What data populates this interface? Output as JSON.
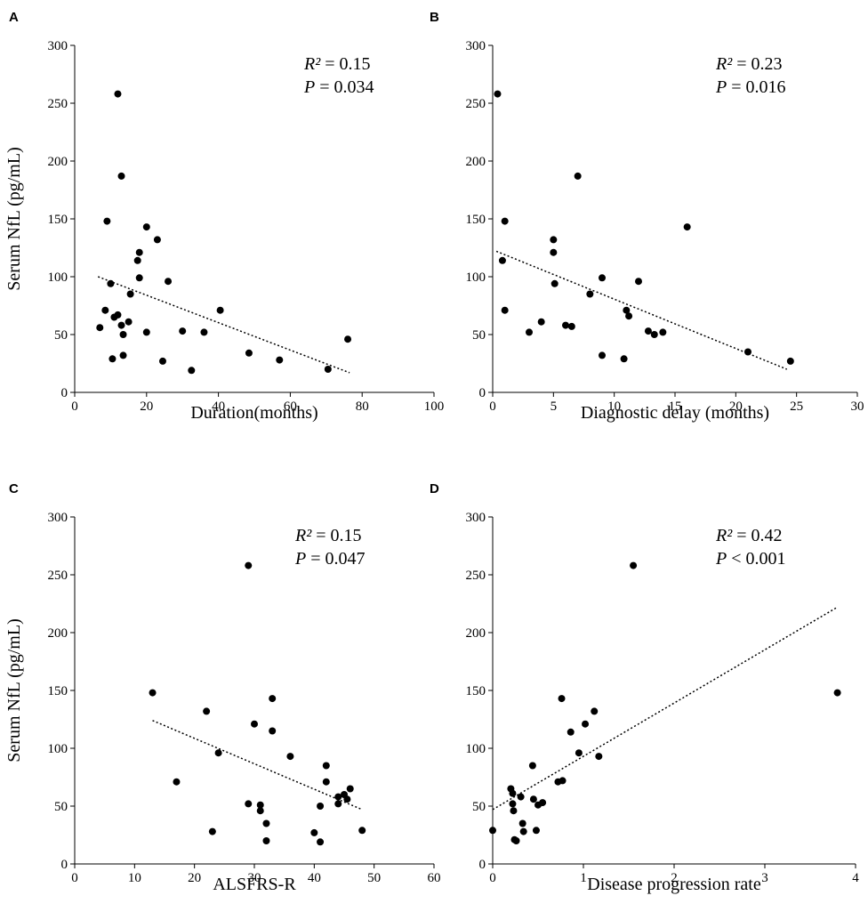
{
  "chart_data": [
    {
      "panel": "A",
      "type": "scatter",
      "xlabel": "Duration(months)",
      "ylabel": "Serum NfL (pg/mL)",
      "xlim": [
        0,
        100
      ],
      "ylim": [
        0,
        300
      ],
      "xticks": [
        0,
        20,
        40,
        60,
        80,
        100
      ],
      "yticks": [
        0,
        50,
        100,
        150,
        200,
        250,
        300
      ],
      "stat_r2": "R² = 0.15",
      "stat_p": "P  = 0.034",
      "trendline": [
        [
          6.5,
          100
        ],
        [
          76.5,
          17
        ]
      ],
      "points": [
        [
          12,
          258
        ],
        [
          13,
          187
        ],
        [
          9,
          148
        ],
        [
          20,
          143
        ],
        [
          23,
          132
        ],
        [
          18,
          121
        ],
        [
          17.5,
          114
        ],
        [
          10,
          94
        ],
        [
          18,
          99
        ],
        [
          26,
          96
        ],
        [
          15.5,
          85
        ],
        [
          8.5,
          71
        ],
        [
          40.5,
          71
        ],
        [
          11,
          65
        ],
        [
          12,
          67
        ],
        [
          7,
          56
        ],
        [
          13,
          58
        ],
        [
          15,
          61
        ],
        [
          13.5,
          50
        ],
        [
          20,
          52
        ],
        [
          30,
          53
        ],
        [
          36,
          52
        ],
        [
          76,
          46
        ],
        [
          48.5,
          34
        ],
        [
          57,
          28
        ],
        [
          70.5,
          20
        ],
        [
          32.5,
          19
        ],
        [
          24.5,
          27
        ],
        [
          10.5,
          29
        ],
        [
          13.5,
          32
        ]
      ]
    },
    {
      "panel": "B",
      "type": "scatter",
      "xlabel": "Diagnostic delay (months)",
      "ylabel": "",
      "xlim": [
        0,
        30
      ],
      "ylim": [
        0,
        300
      ],
      "xticks": [
        0,
        5,
        10,
        15,
        20,
        25,
        30
      ],
      "yticks": [
        0,
        50,
        100,
        150,
        200,
        250,
        300
      ],
      "stat_r2": "R² = 0.23",
      "stat_p": "P  = 0.016",
      "trendline": [
        [
          0.3,
          122
        ],
        [
          24.2,
          20
        ]
      ],
      "points": [
        [
          0.4,
          258
        ],
        [
          7,
          187
        ],
        [
          1,
          148
        ],
        [
          16,
          143
        ],
        [
          5,
          132
        ],
        [
          5,
          121
        ],
        [
          0.8,
          114
        ],
        [
          5.1,
          94
        ],
        [
          9,
          99
        ],
        [
          12,
          96
        ],
        [
          8,
          85
        ],
        [
          1,
          71
        ],
        [
          11,
          71
        ],
        [
          11.2,
          66
        ],
        [
          4,
          61
        ],
        [
          6,
          58
        ],
        [
          6.5,
          57
        ],
        [
          3,
          52
        ],
        [
          12.8,
          53
        ],
        [
          13.3,
          50
        ],
        [
          14,
          52
        ],
        [
          9,
          32
        ],
        [
          10.8,
          29
        ],
        [
          21,
          35
        ],
        [
          24.5,
          27
        ]
      ]
    },
    {
      "panel": "C",
      "type": "scatter",
      "xlabel": "ALSFRS-R",
      "ylabel": "Serum NfL (pg/mL)",
      "xlim": [
        0,
        60
      ],
      "ylim": [
        0,
        300
      ],
      "xticks": [
        0,
        10,
        20,
        30,
        40,
        50,
        60
      ],
      "yticks": [
        0,
        50,
        100,
        150,
        200,
        250,
        300
      ],
      "stat_r2": "R² = 0.15",
      "stat_p": "P  = 0.047",
      "trendline": [
        [
          13,
          124
        ],
        [
          48,
          47
        ]
      ],
      "points": [
        [
          29,
          258
        ],
        [
          13,
          148
        ],
        [
          33,
          143
        ],
        [
          22,
          132
        ],
        [
          30,
          121
        ],
        [
          33,
          115
        ],
        [
          24,
          96
        ],
        [
          36,
          93
        ],
        [
          42,
          85
        ],
        [
          17,
          71
        ],
        [
          42,
          71
        ],
        [
          46,
          65
        ],
        [
          44,
          58
        ],
        [
          45,
          60
        ],
        [
          45.5,
          56
        ],
        [
          44,
          52
        ],
        [
          41,
          50
        ],
        [
          29,
          52
        ],
        [
          31,
          51
        ],
        [
          31,
          46
        ],
        [
          32,
          35
        ],
        [
          32,
          20
        ],
        [
          23,
          28
        ],
        [
          40,
          27
        ],
        [
          41,
          19
        ],
        [
          48,
          29
        ]
      ]
    },
    {
      "panel": "D",
      "type": "scatter",
      "xlabel": "Disease progression rate",
      "ylabel": "",
      "xlim": [
        0,
        4
      ],
      "ylim": [
        0,
        300
      ],
      "xticks": [
        0,
        1,
        2,
        3,
        4
      ],
      "yticks": [
        0,
        50,
        100,
        150,
        200,
        250,
        300
      ],
      "stat_r2": "R² = 0.42",
      "stat_p": "P  < 0.001",
      "trendline": [
        [
          0,
          47
        ],
        [
          3.8,
          222
        ]
      ],
      "points": [
        [
          1.55,
          258
        ],
        [
          3.8,
          148
        ],
        [
          0.76,
          143
        ],
        [
          1.12,
          132
        ],
        [
          1.02,
          121
        ],
        [
          0.86,
          114
        ],
        [
          1.17,
          93
        ],
        [
          0.95,
          96
        ],
        [
          0.44,
          85
        ],
        [
          0.72,
          71
        ],
        [
          0.77,
          72
        ],
        [
          0.2,
          65
        ],
        [
          0.22,
          61
        ],
        [
          0.31,
          58
        ],
        [
          0.45,
          56
        ],
        [
          0.5,
          51
        ],
        [
          0.55,
          53
        ],
        [
          0.22,
          52
        ],
        [
          0.23,
          46
        ],
        [
          0.33,
          35
        ],
        [
          0.34,
          28
        ],
        [
          0.24,
          21
        ],
        [
          0.26,
          20
        ],
        [
          0,
          29
        ],
        [
          0.48,
          29
        ]
      ]
    }
  ]
}
